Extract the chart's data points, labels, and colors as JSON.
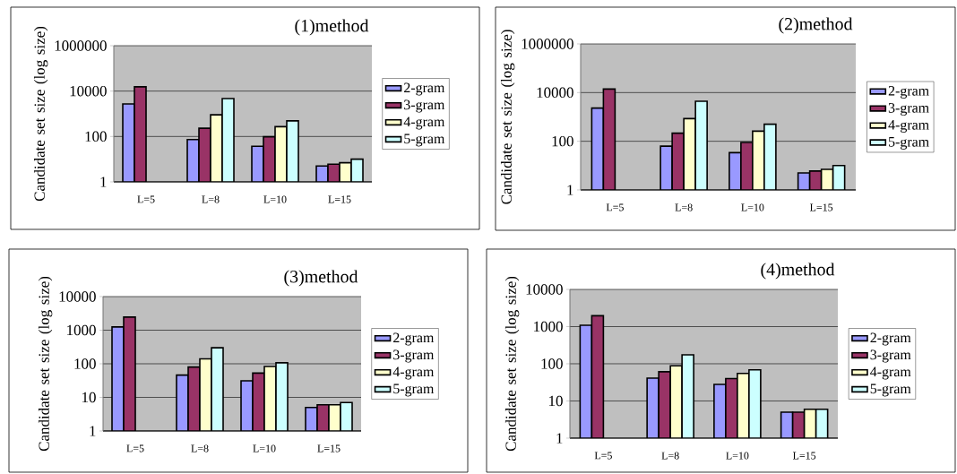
{
  "chart_data": [
    {
      "type": "bar",
      "title": "(1)method",
      "ylabel": "Candidate set size (log size)",
      "categories": [
        "L=5",
        "L=8",
        "L=10",
        "L=15"
      ],
      "log": true,
      "grid": "y",
      "legend": "right",
      "ylim": [
        1,
        1000000
      ],
      "yticks": [
        1,
        100,
        10000,
        1000000
      ],
      "series": [
        {
          "name": "2-gram",
          "color": "#9999ff",
          "values": [
            2700,
            73,
            37,
            5
          ]
        },
        {
          "name": "3-gram",
          "color": "#993366",
          "values": [
            15500,
            230,
            97,
            6
          ]
        },
        {
          "name": "4-gram",
          "color": "#ffffcc",
          "values": [
            null,
            900,
            270,
            7
          ]
        },
        {
          "name": "5-gram",
          "color": "#ccffff",
          "values": [
            null,
            4700,
            490,
            10
          ]
        }
      ]
    },
    {
      "type": "bar",
      "title": "(2)method",
      "ylabel": "Candidate set size (log size)",
      "categories": [
        "L=5",
        "L=8",
        "L=10",
        "L=15"
      ],
      "log": true,
      "grid": "y",
      "legend": "right",
      "ylim": [
        1,
        1000000
      ],
      "yticks": [
        1,
        100,
        10000,
        1000000
      ],
      "series": [
        {
          "name": "2-gram",
          "color": "#9999ff",
          "values": [
            2300,
            63,
            34,
            5
          ]
        },
        {
          "name": "3-gram",
          "color": "#993366",
          "values": [
            14000,
            215,
            89,
            6
          ]
        },
        {
          "name": "4-gram",
          "color": "#ffffcc",
          "values": [
            null,
            850,
            260,
            7
          ]
        },
        {
          "name": "5-gram",
          "color": "#ccffff",
          "values": [
            null,
            4400,
            500,
            10
          ]
        }
      ]
    },
    {
      "type": "bar",
      "title": "(3)method",
      "ylabel": "Candidate set size (log size)",
      "categories": [
        "L=5",
        "L=8",
        "L=10",
        "L=15"
      ],
      "log": true,
      "grid": "y",
      "legend": "right",
      "ylim": [
        1,
        10000
      ],
      "yticks": [
        1,
        10,
        100,
        1000,
        10000
      ],
      "series": [
        {
          "name": "2-gram",
          "color": "#9999ff",
          "values": [
            1250,
            46,
            31,
            5
          ]
        },
        {
          "name": "3-gram",
          "color": "#993366",
          "values": [
            2450,
            80,
            53,
            6
          ]
        },
        {
          "name": "4-gram",
          "color": "#ffffcc",
          "values": [
            null,
            140,
            83,
            6
          ]
        },
        {
          "name": "5-gram",
          "color": "#ccffff",
          "values": [
            null,
            300,
            107,
            7
          ]
        }
      ]
    },
    {
      "type": "bar",
      "title": "(4)method",
      "ylabel": "Candidate set size (log size)",
      "categories": [
        "L=5",
        "L=8",
        "L=10",
        "L=15"
      ],
      "log": true,
      "grid": "y",
      "legend": "right",
      "ylim": [
        1,
        10000
      ],
      "yticks": [
        1,
        10,
        100,
        1000,
        10000
      ],
      "series": [
        {
          "name": "2-gram",
          "color": "#9999ff",
          "values": [
            1090,
            41,
            28,
            5
          ]
        },
        {
          "name": "3-gram",
          "color": "#993366",
          "values": [
            1960,
            61,
            40,
            5
          ]
        },
        {
          "name": "4-gram",
          "color": "#ffffcc",
          "values": [
            null,
            88,
            55,
            6
          ]
        },
        {
          "name": "5-gram",
          "color": "#ccffff",
          "values": [
            null,
            174,
            69,
            6
          ]
        }
      ]
    }
  ]
}
